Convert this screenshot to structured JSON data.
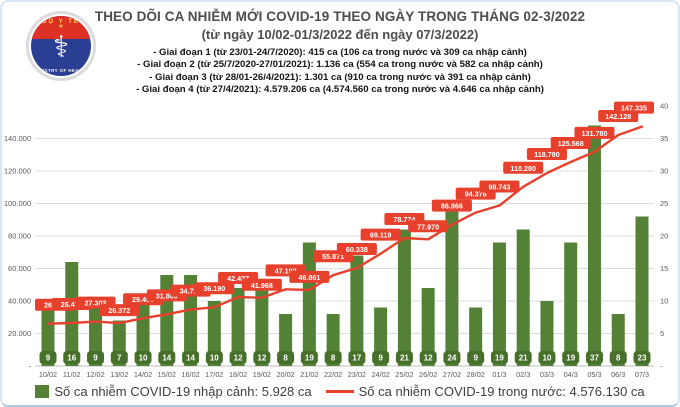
{
  "page": {
    "background": "#ffffff",
    "border_color": "#d9e6f2"
  },
  "header": {
    "logo": {
      "text_top": "BỘ Y TẾ",
      "text_bottom": "MINISTRY OF HEALTH",
      "star": "★",
      "staff_symbol": "⚕"
    },
    "title": "THEO DÕI CA NHIỄM MỚI COVID-19 THEO NGÀY TRONG THÁNG 02-3/2022",
    "subtitle": "(từ ngày 10/02-01/3/2022 đến ngày 07/3/2022)",
    "phases": [
      "- Giai đoạn 1 (từ 23/01-24/7/2020): 415 ca (106 ca trong nước và 309 ca nhập cảnh)",
      "- Giai đoạn 2 (từ 25/7/2020-27/01/2021): 1.136 ca (554 ca trong nước và 582 ca nhập cảnh)",
      "- Giai đoạn 3 (từ 28/01-26/4/2021): 1.301 ca (910 ca trong nước và 391 ca nhập cảnh)",
      "- Giai đoạn 4 (từ 27/4/2021): 4.579.206 ca (4.574.560 ca trong nước và 4.646 ca nhập cảnh)"
    ]
  },
  "chart_data": {
    "type": "combo",
    "categories": [
      "10/02",
      "11/02",
      "12/02",
      "13/02",
      "14/02",
      "15/02",
      "16/02",
      "17/02",
      "18/02",
      "19/02",
      "20/02",
      "21/02",
      "22/02",
      "23/02",
      "24/02",
      "25/02",
      "26/02",
      "27/02",
      "28/02",
      "01/3",
      "02/3",
      "03/3",
      "04/3",
      "05/3",
      "06/3",
      "07/3"
    ],
    "series": [
      {
        "name": "Số ca nhiễm COVID-19 nhập cảnh",
        "chart_type": "bar",
        "axis": "right",
        "color": "#538135",
        "badge_color": "#47702b",
        "values": [
          9,
          16,
          9,
          7,
          10,
          14,
          14,
          10,
          12,
          12,
          8,
          19,
          8,
          17,
          9,
          21,
          12,
          24,
          9,
          19,
          21,
          10,
          19,
          37,
          8,
          23
        ]
      },
      {
        "name": "Số ca nhiễm COVID-19 trong nước",
        "chart_type": "line",
        "axis": "left",
        "color": "#e7402d",
        "values": [
          26023,
          26471,
          27302,
          26372,
          29403,
          31800,
          34723,
          36190,
          42427,
          41968,
          47192,
          46861,
          55871,
          60338,
          69119,
          78774,
          77970,
          86966,
          94376,
          98743,
          110280,
          118780,
          125568,
          131780,
          142128,
          147335
        ],
        "point_labels": [
          "26.023",
          "26.471",
          "27.302",
          "26.372",
          "29.403",
          "31.800",
          "34.723",
          "36.190",
          "42.427",
          "41.968",
          "47.192",
          "46.861",
          "55.871",
          "60.338",
          "69.119",
          "78.774",
          "77.970",
          "86.966",
          "94.376",
          "98.743",
          "110.280",
          "118.780",
          "125.568",
          "131.780",
          "142.128",
          "147.335"
        ]
      }
    ],
    "left_axis": {
      "min": 0,
      "max": 160000,
      "step": 20000,
      "tick_labels": [
        "-",
        "20.000",
        "40.000",
        "60.000",
        "80.000",
        "100.000",
        "120.000",
        "140.000"
      ]
    },
    "right_axis": {
      "min": 0,
      "max": 40,
      "step": 5,
      "tick_labels": [
        "-",
        "5",
        "10",
        "15",
        "20",
        "25",
        "30",
        "35",
        "40"
      ]
    },
    "grid": true,
    "legend_position": "bottom",
    "legend": [
      {
        "swatch": "bar",
        "color": "#538135",
        "label": "Số ca nhiễm COVID-19 nhập cảnh: 5.928 ca"
      },
      {
        "swatch": "line",
        "color": "#e7402d",
        "label": "Số ca nhiễm COVID-19 trong nước: 4.576.130 ca"
      }
    ]
  }
}
